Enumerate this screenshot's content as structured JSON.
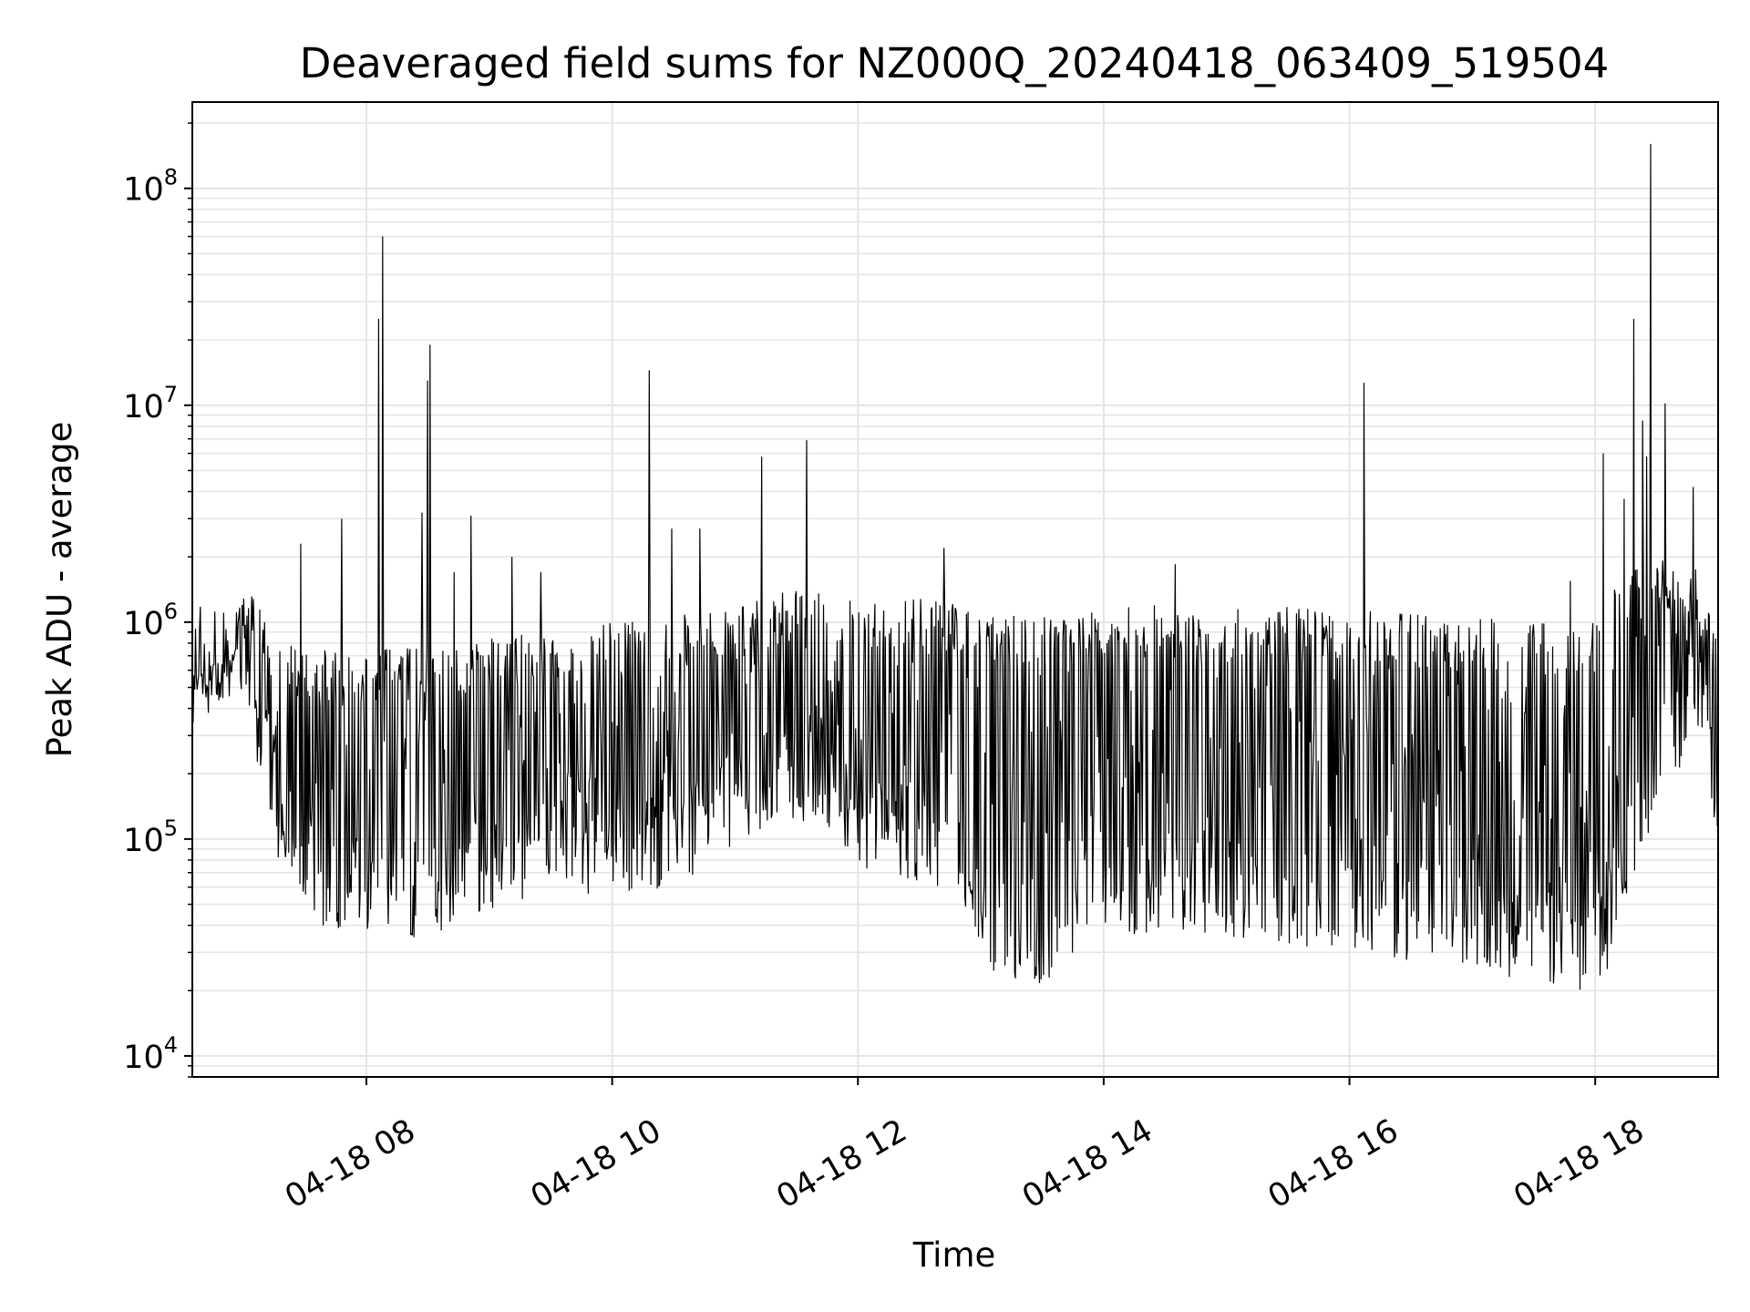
{
  "chart_data": {
    "type": "line",
    "title": "Deaveraged field sums for NZ000Q_20240418_063409_519504",
    "xlabel": "Time",
    "ylabel": "Peak ADU - average",
    "yscale": "log",
    "ylim": [
      8000,
      250000000
    ],
    "xlim": [
      "2024-04-18 06:35",
      "2024-04-18 19:00"
    ],
    "grid": true,
    "line_color": "#000000",
    "grid_color": "#e5e5e5",
    "x_ticks": [
      {
        "value": "2024-04-18 08:00",
        "label": "04-18 08"
      },
      {
        "value": "2024-04-18 10:00",
        "label": "04-18 10"
      },
      {
        "value": "2024-04-18 12:00",
        "label": "04-18 12"
      },
      {
        "value": "2024-04-18 14:00",
        "label": "04-18 14"
      },
      {
        "value": "2024-04-18 16:00",
        "label": "04-18 16"
      },
      {
        "value": "2024-04-18 18:00",
        "label": "04-18 18"
      }
    ],
    "y_ticks": [
      {
        "value": 10000,
        "base": "10",
        "exp": "4"
      },
      {
        "value": 100000,
        "base": "10",
        "exp": "5"
      },
      {
        "value": 1000000,
        "base": "10",
        "exp": "6"
      },
      {
        "value": 10000000,
        "base": "10",
        "exp": "7"
      },
      {
        "value": 100000000,
        "base": "10",
        "exp": "8"
      }
    ],
    "series_profile": [
      {
        "t": "06:35",
        "low": 450000,
        "high": 600000
      },
      {
        "t": "06:50",
        "low": 420000,
        "high": 700000
      },
      {
        "t": "07:00",
        "low": 500000,
        "high": 1500000
      },
      {
        "t": "07:05",
        "low": 250000,
        "high": 1300000
      },
      {
        "t": "07:15",
        "low": 90000,
        "high": 900000
      },
      {
        "t": "07:30",
        "low": 40000,
        "high": 750000
      },
      {
        "t": "08:00",
        "low": 35000,
        "high": 750000
      },
      {
        "t": "08:30",
        "low": 35000,
        "high": 800000
      },
      {
        "t": "09:00",
        "low": 45000,
        "high": 850000
      },
      {
        "t": "09:30",
        "low": 60000,
        "high": 900000
      },
      {
        "t": "09:50",
        "low": 55000,
        "high": 950000
      },
      {
        "t": "10:00",
        "low": 55000,
        "high": 1000000
      },
      {
        "t": "10:30",
        "low": 60000,
        "high": 1100000
      },
      {
        "t": "11:00",
        "low": 90000,
        "high": 1200000
      },
      {
        "t": "11:20",
        "low": 120000,
        "high": 1400000
      },
      {
        "t": "11:40",
        "low": 120000,
        "high": 1400000
      },
      {
        "t": "12:00",
        "low": 75000,
        "high": 1300000
      },
      {
        "t": "12:30",
        "low": 60000,
        "high": 1300000
      },
      {
        "t": "12:50",
        "low": 55000,
        "high": 1200000
      },
      {
        "t": "13:00",
        "low": 25000,
        "high": 1100000
      },
      {
        "t": "13:30",
        "low": 21000,
        "high": 1100000
      },
      {
        "t": "13:45",
        "low": 30000,
        "high": 1100000
      },
      {
        "t": "14:00",
        "low": 35000,
        "high": 1200000
      },
      {
        "t": "15:00",
        "low": 35000,
        "high": 1200000
      },
      {
        "t": "16:00",
        "low": 30000,
        "high": 1150000
      },
      {
        "t": "17:00",
        "low": 25000,
        "high": 1050000
      },
      {
        "t": "17:50",
        "low": 20000,
        "high": 1000000
      },
      {
        "t": "18:05",
        "low": 20000,
        "high": 1000000
      },
      {
        "t": "18:10",
        "low": 40000,
        "high": 1800000
      },
      {
        "t": "18:30",
        "low": 120000,
        "high": 2000000
      },
      {
        "t": "18:50",
        "low": 300000,
        "high": 1800000
      },
      {
        "t": "19:00",
        "low": 100000,
        "high": 900000
      }
    ],
    "spikes": [
      {
        "t": "07:28",
        "value": 2300000
      },
      {
        "t": "07:48",
        "value": 3000000
      },
      {
        "t": "08:06",
        "value": 25000000
      },
      {
        "t": "08:08",
        "value": 60000000
      },
      {
        "t": "08:27",
        "value": 3200000
      },
      {
        "t": "08:30",
        "value": 13000000
      },
      {
        "t": "08:31",
        "value": 19000000
      },
      {
        "t": "08:43",
        "value": 1700000
      },
      {
        "t": "08:51",
        "value": 3100000
      },
      {
        "t": "09:11",
        "value": 2000000
      },
      {
        "t": "09:25",
        "value": 1700000
      },
      {
        "t": "10:18",
        "value": 14500000
      },
      {
        "t": "10:29",
        "value": 2700000
      },
      {
        "t": "10:43",
        "value": 2700000
      },
      {
        "t": "11:13",
        "value": 5800000
      },
      {
        "t": "11:35",
        "value": 6900000
      },
      {
        "t": "12:42",
        "value": 2200000
      },
      {
        "t": "14:35",
        "value": 1850000
      },
      {
        "t": "16:07",
        "value": 12700000
      },
      {
        "t": "17:48",
        "value": 1550000
      },
      {
        "t": "18:04",
        "value": 6000000
      },
      {
        "t": "18:14",
        "value": 3700000
      },
      {
        "t": "18:19",
        "value": 25000000
      },
      {
        "t": "18:23",
        "value": 8500000
      },
      {
        "t": "18:25",
        "value": 5800000
      },
      {
        "t": "18:27",
        "value": 160000000
      },
      {
        "t": "18:34",
        "value": 10200000
      },
      {
        "t": "18:48",
        "value": 4200000
      }
    ]
  }
}
